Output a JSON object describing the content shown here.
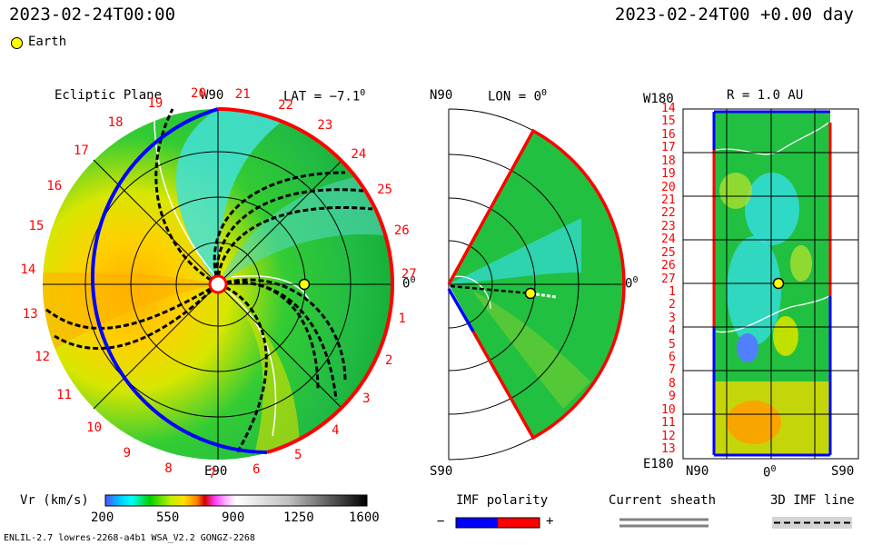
{
  "header": {
    "timestamp_left": "2023-02-24T00:00",
    "timestamp_right": "2023-02-24T00 +0.00 day",
    "legend_earth_label": "Earth"
  },
  "colors": {
    "earth_marker": "#ffff00",
    "positive_polarity": "#ff0000",
    "negative_polarity": "#0000ff",
    "sheath_line": "#808080"
  },
  "panels": {
    "ecliptic": {
      "title": "Ecliptic Plane",
      "top_label": "W90",
      "bottom_label": "E90",
      "right_label": "0",
      "right_label_deg": "0",
      "lat_label": "LAT = −7.1",
      "lat_deg": "0",
      "carrington_labels": [
        "20",
        "21",
        "22",
        "23",
        "24",
        "25",
        "26",
        "27",
        "1",
        "2",
        "3",
        "4",
        "5",
        "6",
        "7",
        "8",
        "9",
        "10",
        "11",
        "12",
        "13",
        "14",
        "15",
        "16",
        "17",
        "18",
        "19"
      ]
    },
    "meridional": {
      "top_label": "N90",
      "bottom_label": "S90",
      "lon_label": "LON = 0",
      "lon_deg": "0",
      "right_label": "0",
      "right_label_deg": "0"
    },
    "synoptic": {
      "top_left_label": "W180",
      "bottom_left_label": "E180",
      "title": "R = 1.0 AU",
      "y_labels": [
        "14",
        "15",
        "16",
        "17",
        "18",
        "19",
        "20",
        "21",
        "22",
        "23",
        "24",
        "25",
        "26",
        "27",
        "1",
        "2",
        "3",
        "4",
        "5",
        "6",
        "7",
        "8",
        "9",
        "10",
        "11",
        "12",
        "13"
      ],
      "x_left": "N90",
      "x_mid": "0",
      "x_mid_deg": "0",
      "x_right": "S90"
    }
  },
  "colorbar": {
    "label": "Vr (km/s)",
    "ticks": [
      "200",
      "550",
      "900",
      "1250",
      "1600"
    ],
    "min": 200,
    "max": 1600
  },
  "legends": {
    "imf_polarity_title": "IMF polarity",
    "minus": "−",
    "plus": "+",
    "current_sheath_title": "Current sheath",
    "imf_line_title": "3D IMF line"
  },
  "footer": {
    "model_info": "ENLIL-2.7 lowres-2268-a4b1 WSA_V2.2 GONGZ-2268"
  },
  "chart_data": {
    "type": "heatmap",
    "quantity": "Vr (km/s)",
    "value_range": [
      200,
      1600
    ],
    "earth_position": {
      "r_au": 1.0,
      "lon_deg": 0,
      "lat_deg": -7.1
    }
  }
}
